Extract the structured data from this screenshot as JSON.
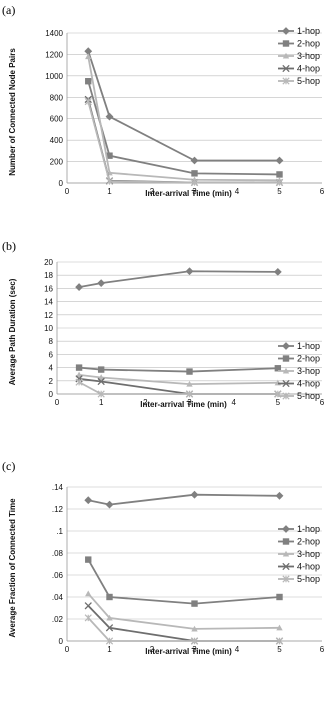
{
  "chart_data": [
    {
      "type": "line",
      "panel_label": "(a)",
      "xlabel": "Inter-arrival Time (min)",
      "ylabel": "Number of Connected Node Pairs",
      "xlim": [
        0,
        6
      ],
      "ylim": [
        0,
        1400
      ],
      "xticks": [
        0,
        1,
        2,
        3,
        4,
        5,
        6
      ],
      "yticks": [
        0,
        200,
        400,
        600,
        800,
        1000,
        1200,
        1400
      ],
      "grid": true,
      "legend_position": "right",
      "x": [
        0.5,
        1,
        3,
        5
      ],
      "series": [
        {
          "name": "1-hop",
          "marker": "diamond",
          "color": "#808080",
          "values": [
            1230,
            620,
            210,
            210
          ]
        },
        {
          "name": "2-hop",
          "marker": "square",
          "color": "#808080",
          "values": [
            950,
            255,
            90,
            80
          ]
        },
        {
          "name": "3-hop",
          "marker": "triangle",
          "color": "#b8b8b8",
          "values": [
            1180,
            95,
            30,
            25
          ]
        },
        {
          "name": "4-hop",
          "marker": "x",
          "color": "#6e6e6e",
          "values": [
            780,
            20,
            5,
            5
          ]
        },
        {
          "name": "5-hop",
          "marker": "star",
          "color": "#b8b8b8",
          "values": [
            760,
            15,
            5,
            5
          ]
        }
      ]
    },
    {
      "type": "line",
      "panel_label": "(b)",
      "xlabel": "Inter-arrival Time (min)",
      "ylabel": "Average Path Duration (sec)",
      "xlim": [
        0,
        6
      ],
      "ylim": [
        0,
        20
      ],
      "xticks": [
        0,
        1,
        2,
        3,
        4,
        5,
        6
      ],
      "yticks": [
        0,
        2,
        4,
        6,
        8,
        10,
        12,
        14,
        16,
        18,
        20
      ],
      "grid": true,
      "legend_position": "right",
      "x": [
        0.5,
        1,
        3,
        5
      ],
      "series": [
        {
          "name": "1-hop",
          "marker": "diamond",
          "color": "#808080",
          "values": [
            16.2,
            16.8,
            18.6,
            18.5
          ]
        },
        {
          "name": "2-hop",
          "marker": "square",
          "color": "#808080",
          "values": [
            4.0,
            3.7,
            3.4,
            3.9
          ]
        },
        {
          "name": "3-hop",
          "marker": "triangle",
          "color": "#b8b8b8",
          "values": [
            2.9,
            2.5,
            1.5,
            1.7
          ]
        },
        {
          "name": "4-hop",
          "marker": "x",
          "color": "#6e6e6e",
          "values": [
            2.3,
            1.9,
            0.0,
            0.0
          ]
        },
        {
          "name": "5-hop",
          "marker": "star",
          "color": "#b8b8b8",
          "values": [
            1.8,
            0.0,
            0.0,
            0.0
          ]
        }
      ]
    },
    {
      "type": "line",
      "panel_label": "(c)",
      "xlabel": "Inter-arrival Time (min)",
      "ylabel": "Average Fraction of Connected Time",
      "xlim": [
        0,
        6
      ],
      "ylim": [
        0,
        0.14
      ],
      "xticks": [
        0,
        1,
        2,
        3,
        4,
        5,
        6
      ],
      "yticks": [
        0,
        0.02,
        0.04,
        0.06,
        0.08,
        0.1,
        0.12,
        0.14
      ],
      "grid": true,
      "legend_position": "right",
      "x": [
        0.5,
        1,
        3,
        5
      ],
      "series": [
        {
          "name": "1-hop",
          "marker": "diamond",
          "color": "#808080",
          "values": [
            0.128,
            0.124,
            0.133,
            0.132
          ]
        },
        {
          "name": "2-hop",
          "marker": "square",
          "color": "#808080",
          "values": [
            0.074,
            0.04,
            0.034,
            0.04
          ]
        },
        {
          "name": "3-hop",
          "marker": "triangle",
          "color": "#b8b8b8",
          "values": [
            0.043,
            0.021,
            0.011,
            0.012
          ]
        },
        {
          "name": "4-hop",
          "marker": "x",
          "color": "#6e6e6e",
          "values": [
            0.032,
            0.012,
            0.0,
            0.0
          ]
        },
        {
          "name": "5-hop",
          "marker": "star",
          "color": "#b8b8b8",
          "values": [
            0.021,
            0.0,
            0.0,
            0.0
          ]
        }
      ]
    }
  ]
}
